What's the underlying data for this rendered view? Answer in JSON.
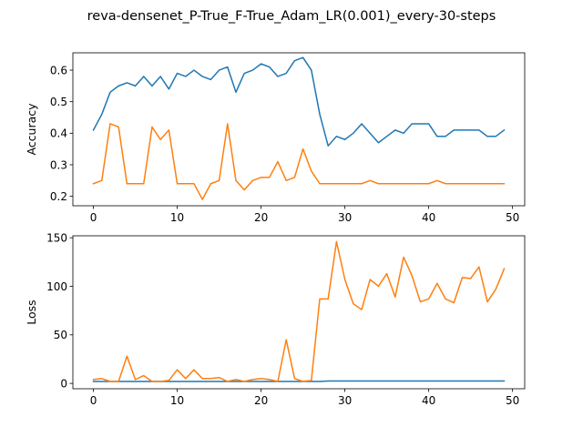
{
  "figure": {
    "title": "reva-densenet_P-True_F-True_Adam_LR(0.001)_every-30-steps"
  },
  "chart_data": [
    {
      "type": "line",
      "ylabel": "Accuracy",
      "xlabel": "",
      "xlim": [
        -2.45,
        51.45
      ],
      "ylim": [
        0.17,
        0.655
      ],
      "xticks": [
        0,
        10,
        20,
        30,
        40,
        50
      ],
      "yticks": [
        0.2,
        0.3,
        0.4,
        0.5,
        0.6
      ],
      "ytick_labels": [
        "0.2",
        "0.3",
        "0.4",
        "0.5",
        "0.6"
      ],
      "x": [
        0,
        1,
        2,
        3,
        4,
        5,
        6,
        7,
        8,
        9,
        10,
        11,
        12,
        13,
        14,
        15,
        16,
        17,
        18,
        19,
        20,
        21,
        22,
        23,
        24,
        25,
        26,
        27,
        28,
        29,
        30,
        31,
        32,
        33,
        34,
        35,
        36,
        37,
        38,
        39,
        40,
        41,
        42,
        43,
        44,
        45,
        46,
        47,
        48,
        49
      ],
      "series": [
        {
          "color": "#1f77b4",
          "values": [
            0.41,
            0.46,
            0.53,
            0.55,
            0.56,
            0.55,
            0.58,
            0.55,
            0.58,
            0.54,
            0.59,
            0.58,
            0.6,
            0.58,
            0.57,
            0.6,
            0.61,
            0.53,
            0.59,
            0.6,
            0.62,
            0.61,
            0.58,
            0.59,
            0.63,
            0.64,
            0.6,
            0.46,
            0.36,
            0.39,
            0.38,
            0.4,
            0.43,
            0.4,
            0.37,
            0.39,
            0.41,
            0.4,
            0.43,
            0.43,
            0.43,
            0.39,
            0.39,
            0.41,
            0.41,
            0.41,
            0.41,
            0.39,
            0.39,
            0.41
          ]
        },
        {
          "color": "#ff7f0e",
          "values": [
            0.24,
            0.25,
            0.43,
            0.42,
            0.24,
            0.24,
            0.24,
            0.42,
            0.38,
            0.41,
            0.24,
            0.24,
            0.24,
            0.19,
            0.24,
            0.25,
            0.43,
            0.25,
            0.22,
            0.25,
            0.26,
            0.26,
            0.31,
            0.25,
            0.26,
            0.35,
            0.28,
            0.24,
            0.24,
            0.24,
            0.24,
            0.24,
            0.24,
            0.25,
            0.24,
            0.24,
            0.24,
            0.24,
            0.24,
            0.24,
            0.24,
            0.25,
            0.24,
            0.24,
            0.24,
            0.24,
            0.24,
            0.24,
            0.24,
            0.24
          ]
        }
      ]
    },
    {
      "type": "line",
      "ylabel": "Loss",
      "xlabel": "",
      "xlim": [
        -2.45,
        51.45
      ],
      "ylim": [
        -5.5,
        152.0
      ],
      "xticks": [
        0,
        10,
        20,
        30,
        40,
        50
      ],
      "yticks": [
        0,
        50,
        100,
        150
      ],
      "ytick_labels": [
        "0",
        "50",
        "100",
        "150"
      ],
      "x": [
        0,
        1,
        2,
        3,
        4,
        5,
        6,
        7,
        8,
        9,
        10,
        11,
        12,
        13,
        14,
        15,
        16,
        17,
        18,
        19,
        20,
        21,
        22,
        23,
        24,
        25,
        26,
        27,
        28,
        29,
        30,
        31,
        32,
        33,
        34,
        35,
        36,
        37,
        38,
        39,
        40,
        41,
        42,
        43,
        44,
        45,
        46,
        47,
        48,
        49
      ],
      "series": [
        {
          "color": "#1f77b4",
          "values": [
            2,
            2,
            2,
            2,
            2,
            2,
            2,
            2,
            2,
            2,
            2,
            2,
            2,
            2,
            2,
            2,
            2,
            2,
            2,
            2,
            2,
            2,
            2,
            2,
            2,
            2,
            2,
            2,
            2.5,
            2.5,
            2.5,
            2.5,
            2.5,
            2.5,
            2.5,
            2.5,
            2.5,
            2.5,
            2.5,
            2.5,
            2.5,
            2.5,
            2.5,
            2.5,
            2.5,
            2.5,
            2.5,
            2.5,
            2.5,
            2.5
          ]
        },
        {
          "color": "#ff7f0e",
          "values": [
            4,
            5,
            2,
            2,
            28,
            4,
            8,
            2,
            2,
            3,
            14,
            5,
            14,
            5,
            5,
            6,
            2,
            4,
            2,
            4,
            5,
            4,
            2,
            45,
            5,
            2,
            3,
            87,
            87,
            146,
            107,
            82,
            76,
            107,
            100,
            113,
            89,
            130,
            111,
            84,
            87,
            103,
            87,
            83,
            109,
            108,
            120,
            84,
            97,
            118
          ]
        }
      ]
    }
  ]
}
